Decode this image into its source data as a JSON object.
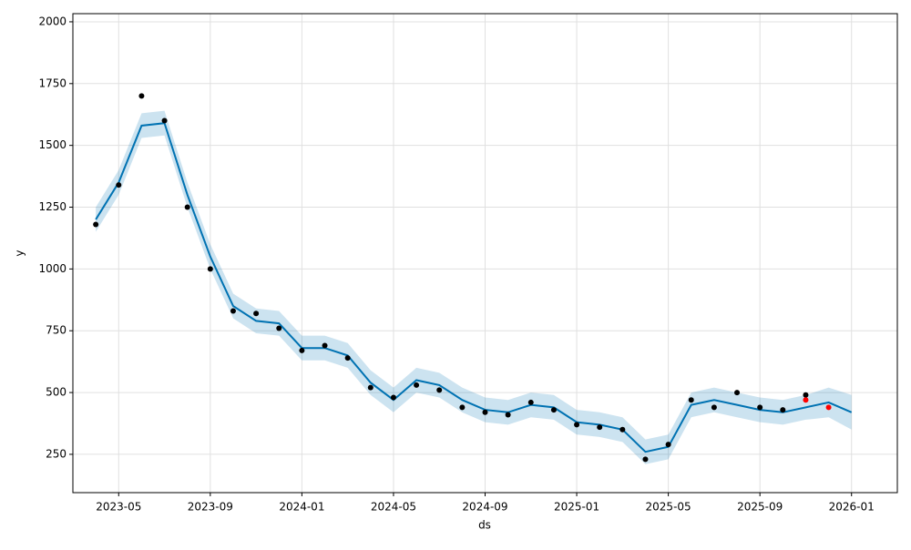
{
  "chart_data": {
    "type": "line",
    "x_label": "ds",
    "y_label": "y",
    "x": [
      "2023-04",
      "2023-05",
      "2023-06",
      "2023-07",
      "2023-08",
      "2023-09",
      "2023-10",
      "2023-11",
      "2023-12",
      "2024-01",
      "2024-02",
      "2024-03",
      "2024-04",
      "2024-05",
      "2024-06",
      "2024-07",
      "2024-08",
      "2024-09",
      "2024-10",
      "2024-11",
      "2024-12",
      "2025-01",
      "2025-02",
      "2025-03",
      "2025-04",
      "2025-05",
      "2025-06",
      "2025-07",
      "2025-08",
      "2025-09",
      "2025-10",
      "2025-11",
      "2025-12",
      "2026-01"
    ],
    "xlim": [
      "2023-03",
      "2026-03"
    ],
    "xticks": [
      "2023-05",
      "2023-09",
      "2024-01",
      "2024-05",
      "2024-09",
      "2025-01",
      "2025-05",
      "2025-09",
      "2026-01"
    ],
    "ylim": [
      95,
      2033
    ],
    "yticks": [
      250,
      500,
      750,
      1000,
      1250,
      1500,
      1750,
      2000
    ],
    "grid": true,
    "series": [
      {
        "color": "#0072B2",
        "marker": "line",
        "values": [
          1200,
          1350,
          1580,
          1590,
          1300,
          1050,
          850,
          790,
          780,
          680,
          680,
          650,
          540,
          470,
          550,
          530,
          470,
          430,
          420,
          450,
          440,
          380,
          370,
          350,
          260,
          280,
          450,
          470,
          450,
          430,
          420,
          440,
          460,
          420
        ],
        "lower": [
          1150,
          1300,
          1530,
          1540,
          1250,
          1000,
          800,
          740,
          730,
          630,
          630,
          600,
          490,
          420,
          500,
          480,
          420,
          380,
          370,
          400,
          390,
          330,
          320,
          300,
          210,
          230,
          400,
          420,
          400,
          380,
          370,
          390,
          400,
          350
        ],
        "upper": [
          1250,
          1400,
          1630,
          1640,
          1350,
          1100,
          900,
          840,
          830,
          730,
          730,
          700,
          590,
          520,
          600,
          580,
          520,
          480,
          470,
          500,
          490,
          430,
          420,
          400,
          310,
          330,
          500,
          520,
          500,
          480,
          470,
          490,
          520,
          490
        ]
      },
      {
        "color": "#000000",
        "marker": "point",
        "values": [
          1180,
          1340,
          1700,
          1600,
          1250,
          1000,
          830,
          820,
          760,
          670,
          690,
          640,
          520,
          480,
          530,
          510,
          440,
          420,
          410,
          460,
          430,
          370,
          360,
          350,
          230,
          290,
          470,
          440,
          500,
          440,
          430,
          490,
          null,
          null
        ]
      },
      {
        "color": "#ff0000",
        "marker": "point",
        "values": [
          null,
          null,
          null,
          null,
          null,
          null,
          null,
          null,
          null,
          null,
          null,
          null,
          null,
          null,
          null,
          null,
          null,
          null,
          null,
          null,
          null,
          null,
          null,
          null,
          null,
          null,
          null,
          null,
          null,
          null,
          null,
          470,
          440,
          null
        ]
      }
    ]
  }
}
